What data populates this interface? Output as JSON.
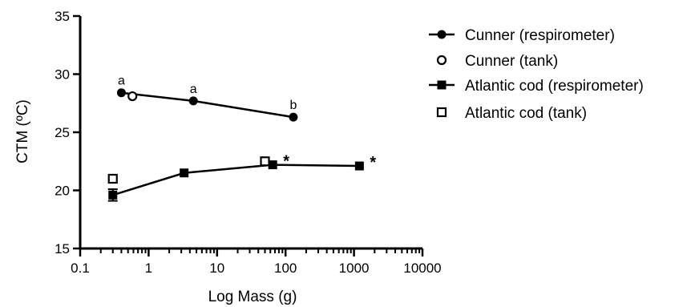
{
  "chart_data": {
    "type": "scatter",
    "xlabel": "Log Mass (g)",
    "ylabel": "CTM (ºC)",
    "xscale": "log",
    "xlim": [
      0.1,
      10000
    ],
    "ylim": [
      15,
      35
    ],
    "xticks": [
      0.1,
      1,
      10,
      100,
      1000,
      10000
    ],
    "xtick_labels": [
      "0.1",
      "1",
      "10",
      "100",
      "1000",
      "10000"
    ],
    "yticks": [
      15,
      20,
      25,
      30,
      35
    ],
    "ytick_labels": [
      "15",
      "20",
      "25",
      "30",
      "35"
    ],
    "grid": false,
    "legend_position": "top-right",
    "series": [
      {
        "name": "Cunner (respirometer)",
        "marker": "filled-circle",
        "connected": true,
        "color": "#000000",
        "x": [
          0.4,
          4.5,
          130
        ],
        "y": [
          28.4,
          27.7,
          26.3
        ]
      },
      {
        "name": "Cunner (tank)",
        "marker": "open-circle",
        "connected": false,
        "color": "#000000",
        "x": [
          0.58
        ],
        "y": [
          28.1
        ]
      },
      {
        "name": "Atlantic cod (respirometer)",
        "marker": "filled-square",
        "connected": true,
        "color": "#000000",
        "x": [
          0.3,
          3.3,
          65,
          1200
        ],
        "y": [
          19.6,
          21.5,
          22.2,
          22.1
        ],
        "error": [
          0.5,
          0,
          0,
          0
        ]
      },
      {
        "name": "Atlantic cod (tank)",
        "marker": "open-square",
        "connected": false,
        "color": "#000000",
        "x": [
          0.3,
          50
        ],
        "y": [
          21.0,
          22.5
        ]
      }
    ],
    "annotations": [
      {
        "text": "a",
        "x": 0.4,
        "y": 28.4
      },
      {
        "text": "a",
        "x": 4.5,
        "y": 27.7
      },
      {
        "text": "b",
        "x": 130,
        "y": 26.3
      },
      {
        "text": "*",
        "x": 65,
        "y": 22.2
      },
      {
        "text": "*",
        "x": 1200,
        "y": 22.1
      }
    ]
  }
}
